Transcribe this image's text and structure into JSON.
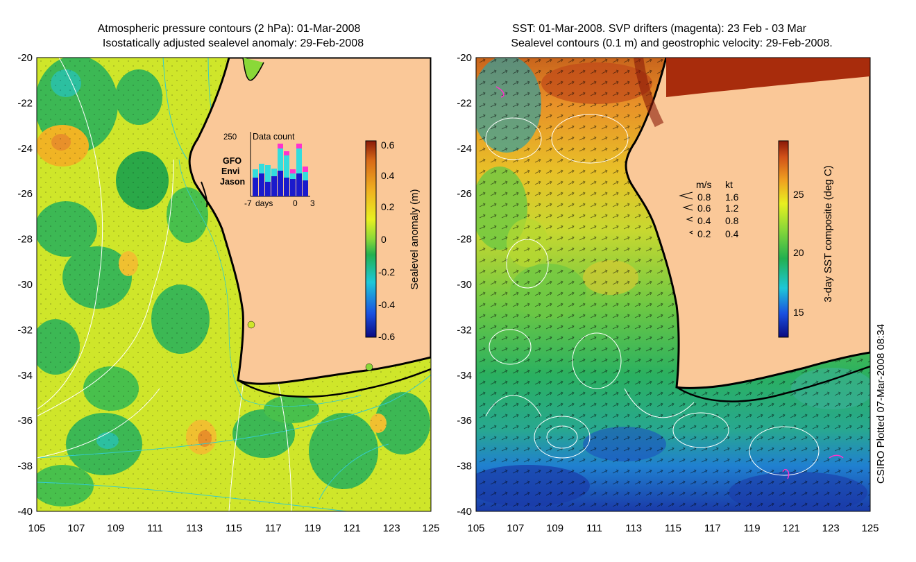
{
  "left_panel": {
    "title_line1": "Atmospheric pressure contours (2 hPa): 01-Mar-2008",
    "title_line2": "Isostatically adjusted sealevel anomaly: 29-Feb-2008",
    "colorbar": {
      "label": "Sealevel anomaly (m)",
      "ticks": [
        "0.6",
        "0.4",
        "0.2",
        "0",
        "-0.2",
        "-0.4",
        "-0.6"
      ],
      "range": [
        -0.6,
        0.6
      ]
    },
    "inset": {
      "title": "Data count",
      "y_max_label": "250",
      "x_labels": [
        "-7",
        "days",
        "0",
        "3"
      ],
      "legend": [
        {
          "name": "GFO",
          "color": "#ff33cc"
        },
        {
          "name": "Envi",
          "color": "#33dddd"
        },
        {
          "name": "Jason",
          "color": "#1a1acc"
        }
      ]
    }
  },
  "right_panel": {
    "title_line1": "SST: 01-Mar-2008. SVP drifters (magenta): 23 Feb - 03 Mar",
    "title_line2": "Sealevel contours (0.1 m) and geostrophic velocity: 29-Feb-2008.",
    "colorbar": {
      "label": "3-day SST composite (deg C)",
      "ticks": [
        "25",
        "20",
        "15"
      ]
    },
    "velocity_legend": {
      "header_ms": "m/s",
      "header_kt": "kt",
      "rows": [
        {
          "ms": "0.8",
          "kt": "1.6"
        },
        {
          "ms": "0.6",
          "kt": "1.2"
        },
        {
          "ms": "0.4",
          "kt": "0.8"
        },
        {
          "ms": "0.2",
          "kt": "0.4"
        }
      ]
    }
  },
  "axes": {
    "lon_labels": [
      "105",
      "107",
      "109",
      "111",
      "113",
      "115",
      "117",
      "119",
      "121",
      "123",
      "125"
    ],
    "lat_labels": [
      "-20",
      "-22",
      "-24",
      "-26",
      "-28",
      "-30",
      "-32",
      "-34",
      "-36",
      "-38",
      "-40"
    ]
  },
  "credit": "CSIRO Plotted 07-Mar-2008 08:34",
  "colors": {
    "land": "#fac898",
    "coast": "#000000",
    "contour": "#ffffff",
    "pressure": "#33cccc",
    "drifter": "#ff33cc"
  }
}
